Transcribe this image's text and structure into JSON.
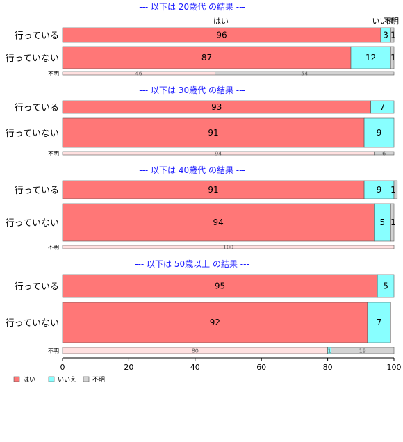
{
  "chart_data": {
    "type": "bar",
    "orientation": "horizontal",
    "stacked": true,
    "xlim": [
      0,
      100
    ],
    "xticks": [
      0,
      20,
      40,
      60,
      80,
      100
    ],
    "category_labels_top": [
      "はい",
      "いいえ",
      "不明"
    ],
    "legend": {
      "placement": "bottom-left",
      "items": [
        {
          "label": "はい",
          "color": "#ff7777"
        },
        {
          "label": "いいえ",
          "color": "#88ffff"
        },
        {
          "label": "不明",
          "color": "#d3d3d3"
        }
      ]
    },
    "panels": [
      {
        "title": "--- 以下は 20歳代 の結果 ---",
        "rows": [
          {
            "label": "行っている",
            "values": [
              96,
              3,
              1
            ],
            "labels": [
              "96",
              "3",
              "1"
            ]
          },
          {
            "label": "行っていない",
            "values": [
              87,
              12,
              1
            ],
            "labels": [
              "87",
              "12",
              "1"
            ]
          },
          {
            "label": "不明",
            "small": true,
            "values": [
              46,
              0,
              54
            ],
            "labels": [
              "46",
              "",
              "54"
            ]
          }
        ]
      },
      {
        "title": "--- 以下は 30歳代 の結果 ---",
        "rows": [
          {
            "label": "行っている",
            "values": [
              93,
              7,
              0
            ],
            "labels": [
              "93",
              "7",
              ""
            ]
          },
          {
            "label": "行っていない",
            "values": [
              91,
              9,
              0
            ],
            "labels": [
              "91",
              "9",
              ""
            ]
          },
          {
            "label": "不明",
            "small": true,
            "values": [
              94,
              0,
              6
            ],
            "labels": [
              "94",
              "",
              "6"
            ]
          }
        ]
      },
      {
        "title": "--- 以下は 40歳代 の結果 ---",
        "rows": [
          {
            "label": "行っている",
            "values": [
              91,
              9,
              1
            ],
            "labels": [
              "91",
              "9",
              "1"
            ]
          },
          {
            "label": "行っていない",
            "values": [
              94,
              5,
              1
            ],
            "labels": [
              "94",
              "5",
              "1"
            ]
          },
          {
            "label": "不明",
            "small": true,
            "values": [
              100,
              0,
              0
            ],
            "labels": [
              "100",
              "",
              ""
            ]
          }
        ]
      },
      {
        "title": "--- 以下は 50歳以上 の結果 ---",
        "rows": [
          {
            "label": "行っている",
            "values": [
              95,
              5,
              0
            ],
            "labels": [
              "95",
              "5",
              ""
            ]
          },
          {
            "label": "行っていない",
            "values": [
              92,
              7,
              0
            ],
            "labels": [
              "92",
              "7",
              ""
            ]
          },
          {
            "label": "不明",
            "small": true,
            "values": [
              80,
              1,
              19
            ],
            "labels": [
              "80",
              "1",
              "19"
            ]
          }
        ]
      }
    ]
  }
}
